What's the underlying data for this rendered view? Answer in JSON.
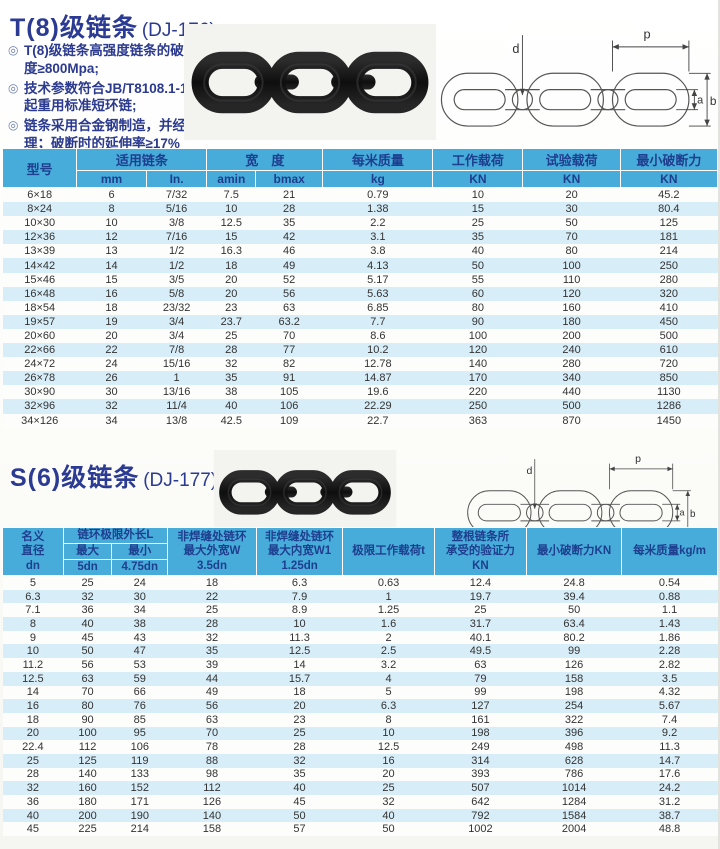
{
  "colors": {
    "header_bg": "#48acdb",
    "header_text": "#1e3e8e",
    "row_alt": "#d7edf8",
    "title_navy": "#2b3a92",
    "chain_black": "#141414"
  },
  "section_t8": {
    "title": "T(8)级链条",
    "code": "(DJ-176)",
    "bullets": [
      "T(8)级链条高强度链条的破断强度≥800Mpa;",
      "技术参数符合JB/T8108.1-1999起重用标准短环链;",
      "链条采用合金钢制造，并经热处理；破断时的延伸率≥17%"
    ],
    "table": {
      "group_headers": {
        "model": "型号",
        "chain": "适用链条",
        "width": "宽　度",
        "mass": "每米质量",
        "work_load": "工作载荷",
        "test_load": "试验载荷",
        "min_break": "最小破断力"
      },
      "sub_headers": {
        "mm": "mm",
        "inch": "In.",
        "amin": "amin",
        "bmax": "bmax",
        "kg": "kg",
        "kn1": "KN",
        "kn2": "KN",
        "kn3": "KN"
      },
      "rows": [
        [
          "6×18",
          "6",
          "7/32",
          "7.5",
          "21",
          "0.79",
          "10",
          "20",
          "45.2"
        ],
        [
          "8×24",
          "8",
          "5/16",
          "10",
          "28",
          "1.38",
          "15",
          "30",
          "80.4"
        ],
        [
          "10×30",
          "10",
          "3/8",
          "12.5",
          "35",
          "2.2",
          "25",
          "50",
          "125"
        ],
        [
          "12×36",
          "12",
          "7/16",
          "15",
          "42",
          "3.1",
          "35",
          "70",
          "181"
        ],
        [
          "13×39",
          "13",
          "1/2",
          "16.3",
          "46",
          "3.8",
          "40",
          "80",
          "214"
        ],
        [
          "14×42",
          "14",
          "1/2",
          "18",
          "49",
          "4.13",
          "50",
          "100",
          "250"
        ],
        [
          "15×46",
          "15",
          "3/5",
          "20",
          "52",
          "5.17",
          "55",
          "110",
          "280"
        ],
        [
          "16×48",
          "16",
          "5/8",
          "20",
          "56",
          "5.63",
          "60",
          "120",
          "320"
        ],
        [
          "18×54",
          "18",
          "23/32",
          "23",
          "63",
          "6.85",
          "80",
          "160",
          "410"
        ],
        [
          "19×57",
          "19",
          "3/4",
          "23.7",
          "63.2",
          "7.7",
          "90",
          "180",
          "450"
        ],
        [
          "20×60",
          "20",
          "3/4",
          "25",
          "70",
          "8.6",
          "100",
          "200",
          "500"
        ],
        [
          "22×66",
          "22",
          "7/8",
          "28",
          "77",
          "10.2",
          "120",
          "240",
          "610"
        ],
        [
          "24×72",
          "24",
          "15/16",
          "32",
          "82",
          "12.78",
          "140",
          "280",
          "720"
        ],
        [
          "26×78",
          "26",
          "1",
          "35",
          "91",
          "14.87",
          "170",
          "340",
          "850"
        ],
        [
          "30×90",
          "30",
          "13/16",
          "38",
          "105",
          "19.6",
          "220",
          "440",
          "1130"
        ],
        [
          "32×96",
          "32",
          "11/4",
          "40",
          "106",
          "22.29",
          "250",
          "500",
          "1286"
        ],
        [
          "34×126",
          "34",
          "13/8",
          "42.5",
          "109",
          "22.7",
          "363",
          "870",
          "1450"
        ]
      ]
    }
  },
  "section_s6": {
    "title": "S(6)级链条",
    "code": "(DJ-177)",
    "table": {
      "headers": {
        "dn": "名义\n直径\ndn",
        "limit_length": "链环极限外长L",
        "max": "最大",
        "min": "最小",
        "max_sub": "5dn",
        "min_sub": "4.75dn",
        "w": "非焊缝处链环\n最大外宽W\n3.5dn",
        "w1": "非焊缝处链环\n最大内宽W1\n1.25dn",
        "load": "极限工作载荷t",
        "proof": "整根链条所\n承受的验证力\nKN",
        "break": "最小破断力KN",
        "mass": "每米质量kg/m"
      },
      "rows": [
        [
          "5",
          "25",
          "24",
          "18",
          "6.3",
          "0.63",
          "12.4",
          "24.8",
          "0.54"
        ],
        [
          "6.3",
          "32",
          "30",
          "22",
          "7.9",
          "1",
          "19.7",
          "39.4",
          "0.88"
        ],
        [
          "7.1",
          "36",
          "34",
          "25",
          "8.9",
          "1.25",
          "25",
          "50",
          "1.1"
        ],
        [
          "8",
          "40",
          "38",
          "28",
          "10",
          "1.6",
          "31.7",
          "63.4",
          "1.43"
        ],
        [
          "9",
          "45",
          "43",
          "32",
          "11.3",
          "2",
          "40.1",
          "80.2",
          "1.86"
        ],
        [
          "10",
          "50",
          "47",
          "35",
          "12.5",
          "2.5",
          "49.5",
          "99",
          "2.28"
        ],
        [
          "11.2",
          "56",
          "53",
          "39",
          "14",
          "3.2",
          "63",
          "126",
          "2.82"
        ],
        [
          "12.5",
          "63",
          "59",
          "44",
          "15.7",
          "4",
          "79",
          "158",
          "3.5"
        ],
        [
          "14",
          "70",
          "66",
          "49",
          "18",
          "5",
          "99",
          "198",
          "4.32"
        ],
        [
          "16",
          "80",
          "76",
          "56",
          "20",
          "6.3",
          "127",
          "254",
          "5.67"
        ],
        [
          "18",
          "90",
          "85",
          "63",
          "23",
          "8",
          "161",
          "322",
          "7.4"
        ],
        [
          "20",
          "100",
          "95",
          "70",
          "25",
          "10",
          "198",
          "396",
          "9.2"
        ],
        [
          "22.4",
          "112",
          "106",
          "78",
          "28",
          "12.5",
          "249",
          "498",
          "11.3"
        ],
        [
          "25",
          "125",
          "119",
          "88",
          "32",
          "16",
          "314",
          "628",
          "14.7"
        ],
        [
          "28",
          "140",
          "133",
          "98",
          "35",
          "20",
          "393",
          "786",
          "17.6"
        ],
        [
          "32",
          "160",
          "152",
          "112",
          "40",
          "25",
          "507",
          "1014",
          "24.2"
        ],
        [
          "36",
          "180",
          "171",
          "126",
          "45",
          "32",
          "642",
          "1284",
          "31.2"
        ],
        [
          "40",
          "200",
          "190",
          "140",
          "50",
          "40",
          "792",
          "1584",
          "38.7"
        ],
        [
          "45",
          "225",
          "214",
          "158",
          "57",
          "50",
          "1002",
          "2004",
          "48.8"
        ]
      ]
    }
  },
  "diagram_labels": {
    "d": "d",
    "p": "p",
    "a": "a",
    "b": "b"
  }
}
